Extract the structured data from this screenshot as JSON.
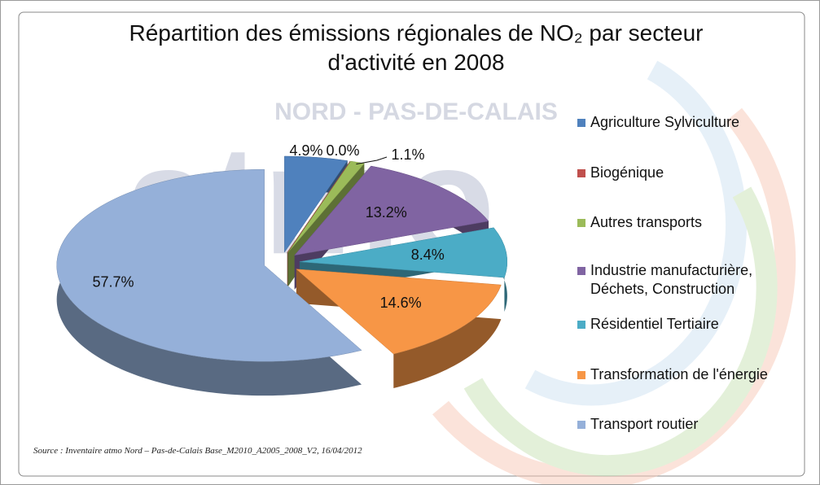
{
  "watermark": {
    "region": "NORD - PAS-DE-CALAIS",
    "logo": "atmo"
  },
  "chart_data": {
    "type": "pie",
    "title": "Répartition des émissions régionales de NO₂ par secteur d'activité en 2008",
    "categories": [
      "Agriculture Sylviculture",
      "Biogénique",
      "Autres transports",
      "Industrie manufacturière, Déchets, Construction",
      "Résidentiel Tertiaire",
      "Transformation de l'énergie",
      "Transport routier"
    ],
    "values": [
      4.9,
      0.0,
      1.1,
      13.2,
      8.4,
      14.6,
      57.7
    ],
    "value_labels": [
      "4.9%",
      "0.0%",
      "1.1%",
      "13.2%",
      "8.4%",
      "14.6%",
      "57.7%"
    ],
    "colors": [
      "#4f81bd",
      "#c0504d",
      "#9bbb59",
      "#8064a2",
      "#4bacc6",
      "#f79646",
      "#95b0d9"
    ],
    "legend": "right"
  },
  "source": "Source : Inventaire atmo Nord – Pas-de-Calais Base_M2010_A2005_2008_V2, 16/04/2012"
}
